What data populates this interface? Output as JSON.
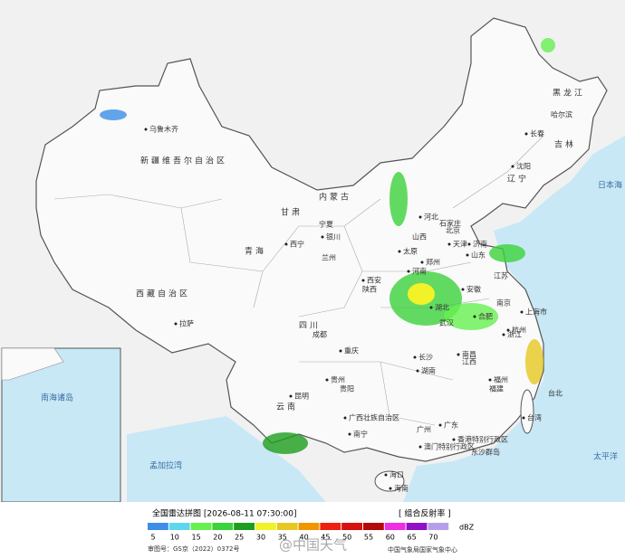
{
  "map": {
    "places": [
      "乌鲁木齐",
      "新疆维吾尔自治区",
      "西藏自治区",
      "拉萨",
      "青海",
      "甘肃",
      "内蒙古",
      "黑龙江",
      "吉林",
      "辽宁",
      "哈尔滨",
      "长春",
      "沈阳",
      "北京",
      "天津",
      "河北",
      "山西",
      "山东",
      "河南",
      "陕西",
      "西安",
      "四川",
      "成都",
      "重庆",
      "湖北",
      "武汉",
      "湖南",
      "长沙",
      "江西",
      "南昌",
      "安徽",
      "江苏",
      "浙江",
      "上海市",
      "福建",
      "台湾",
      "广东",
      "广州",
      "广西壮族自治区",
      "南宁",
      "云南",
      "昆明",
      "贵州",
      "贵阳",
      "海南",
      "海口",
      "宁夏",
      "银川",
      "西宁",
      "兰州",
      "济南",
      "太原",
      "石家庄",
      "郑州",
      "合肥",
      "南京",
      "杭州",
      "福州",
      "台北",
      "香港特别行政区",
      "澳门特别行政区",
      "东沙群岛",
      "日本海",
      "太平洋",
      "孟加拉湾",
      "南海诸岛"
    ]
  },
  "legend": {
    "title": "全国雷达拼图 [2026-08-11 07:30:00]",
    "product": "[ 组合反射率 ]",
    "unit": "dBZ",
    "scale": [
      {
        "label": "5",
        "color": "#3c8ee8"
      },
      {
        "label": "10",
        "color": "#5fd6f0"
      },
      {
        "label": "15",
        "color": "#66f050"
      },
      {
        "label": "20",
        "color": "#3cd23c"
      },
      {
        "label": "25",
        "color": "#1e9e1e"
      },
      {
        "label": "30",
        "color": "#f2f228"
      },
      {
        "label": "35",
        "color": "#e6c820"
      },
      {
        "label": "40",
        "color": "#f29600"
      },
      {
        "label": "45",
        "color": "#ef2010"
      },
      {
        "label": "50",
        "color": "#d81010"
      },
      {
        "label": "55",
        "color": "#b40a0a"
      },
      {
        "label": "60",
        "color": "#ee2ee0"
      },
      {
        "label": "65",
        "color": "#9010c8"
      },
      {
        "label": "70",
        "color": "#b4a0e8"
      }
    ],
    "approval": "审图号：GS京（2022）0372号",
    "issuer": "中国气象局国家气象中心",
    "watermark": "@中国天气"
  }
}
